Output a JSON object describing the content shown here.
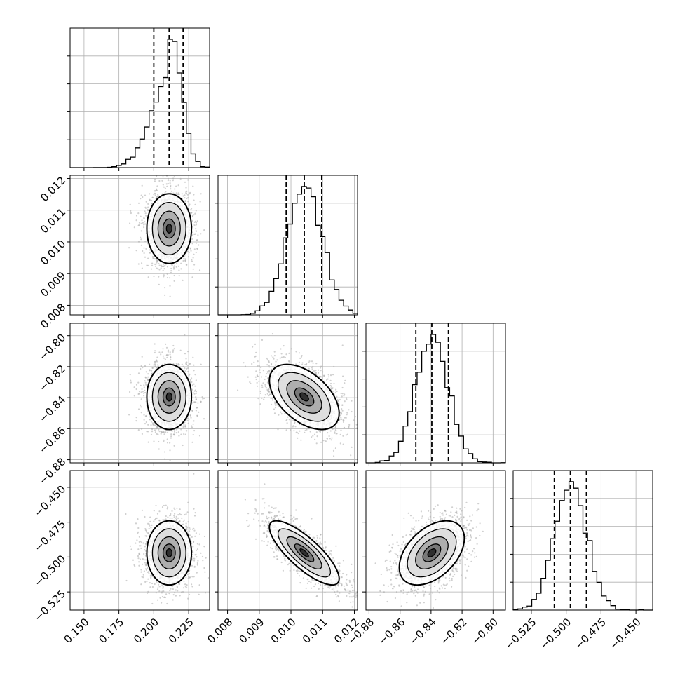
{
  "chart_data": {
    "type": "corner",
    "parameters": [
      {
        "range": [
          0.14,
          0.24
        ],
        "ticks": [
          "0.150",
          "0.175",
          "0.200",
          "0.225"
        ],
        "tick_values": [
          0.15,
          0.175,
          0.2,
          0.225
        ],
        "median": 0.211,
        "quantiles": [
          0.2,
          0.211,
          0.221
        ],
        "spread": 0.008
      },
      {
        "range": [
          0.0077,
          0.0121
        ],
        "ticks": [
          "0.008",
          "0.009",
          "0.010",
          "0.011",
          "0.012"
        ],
        "tick_values": [
          0.008,
          0.009,
          0.01,
          0.011,
          0.012
        ],
        "median": 0.01042,
        "quantiles": [
          0.00985,
          0.01042,
          0.01097
        ],
        "spread": 0.00055
      },
      {
        "range": [
          -0.882,
          -0.792
        ],
        "ticks": [
          "−0.88",
          "−0.86",
          "−0.84",
          "−0.82",
          "−0.80"
        ],
        "tick_values": [
          -0.88,
          -0.86,
          -0.84,
          -0.82,
          -0.8
        ],
        "median": -0.8395,
        "quantiles": [
          -0.8498,
          -0.8395,
          -0.8288
        ],
        "spread": 0.0105
      },
      {
        "range": [
          -0.538,
          -0.438
        ],
        "ticks": [
          "−0.525",
          "−0.500",
          "−0.475",
          "−0.450"
        ],
        "tick_values": [
          -0.525,
          -0.5,
          -0.475,
          -0.45
        ],
        "median": -0.497,
        "quantiles": [
          -0.5085,
          -0.497,
          -0.4855
        ],
        "spread": 0.0115
      }
    ],
    "correlations": {
      "1-0": 0.0,
      "2-0": 0.0,
      "2-1": -0.5,
      "3-0": 0.0,
      "3-1": -0.8,
      "3-2": 0.45
    },
    "grid": true,
    "colors": {
      "line": "#000000",
      "points": "#a9a9a9",
      "grid": "#b0b0b0"
    }
  }
}
